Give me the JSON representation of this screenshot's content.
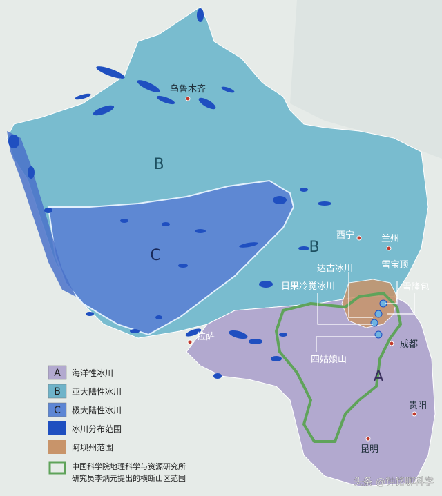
{
  "colors": {
    "background": "#e6ebe8",
    "zone_a": "#b2a9cf",
    "zone_b": "#6fb3c9",
    "zone_b_north": "#8cc7d8",
    "zone_c": "#5d86d4",
    "glacier": "#1f4fc0",
    "aba": "#c8946a",
    "hengduan_border": "#5fa35a",
    "city_dot": "#c0392b"
  },
  "zones": {
    "a": "A",
    "b_north": "B",
    "b_south": "B",
    "c": "C"
  },
  "cities": {
    "urumqi": "乌鲁木齐",
    "xining": "西宁",
    "lanzhou": "兰州",
    "lhasa": "拉萨",
    "chengdu": "成都",
    "guiyang": "贵阳",
    "kunming": "昆明"
  },
  "glacier_labels": {
    "dagu": "达古冰川",
    "xuebaoding": "雪宝顶",
    "xuelongbao": "雪隆包",
    "riguolengjue": "日果冷觉冰川",
    "siguniang": "四姑娘山"
  },
  "legend": {
    "items": [
      {
        "symbol": "A",
        "label": "海洋性冰川",
        "color": "#b2a9cf"
      },
      {
        "symbol": "B",
        "label": "亚大陆性冰川",
        "color": "#6fb3c9"
      },
      {
        "symbol": "C",
        "label": "极大陆性冰川",
        "color": "#5d86d4"
      },
      {
        "symbol": "",
        "label": "冰川分布范围",
        "color": "#1f4fc0"
      },
      {
        "symbol": "",
        "label": "阿坝州范围",
        "color": "#c8946a"
      }
    ],
    "hengduan_line1": "中国科学院地理科学与资源研究所",
    "hengduan_line2": "研究员李炳元提出的横断山区范围"
  },
  "watermark": "头条 @钟铭聊科学"
}
